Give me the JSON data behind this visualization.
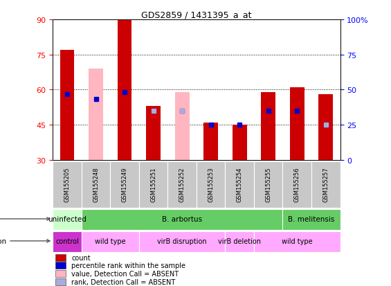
{
  "title": "GDS2859 / 1431395_a_at",
  "samples": [
    "GSM155205",
    "GSM155248",
    "GSM155249",
    "GSM155251",
    "GSM155252",
    "GSM155253",
    "GSM155254",
    "GSM155255",
    "GSM155256",
    "GSM155257"
  ],
  "ylim": [
    30,
    90
  ],
  "yticks": [
    30,
    45,
    60,
    75,
    90
  ],
  "y2lim": [
    0,
    100
  ],
  "y2ticks": [
    0,
    25,
    50,
    75,
    100
  ],
  "bar_bottom": 30,
  "red_bars": [
    77,
    null,
    90,
    53,
    null,
    46,
    45,
    59,
    61,
    58
  ],
  "pink_bars": [
    null,
    69,
    null,
    null,
    59,
    null,
    null,
    null,
    null,
    null
  ],
  "blue_markers": [
    58,
    56,
    59,
    51,
    51,
    45,
    45,
    51,
    51,
    45
  ],
  "light_blue_markers": [
    null,
    null,
    null,
    51,
    51,
    null,
    null,
    null,
    null,
    45
  ],
  "infection_groups": [
    {
      "label": "uninfected",
      "start": 0,
      "end": 1,
      "color": "#CCFFCC"
    },
    {
      "label": "B. arbortus",
      "start": 1,
      "end": 8,
      "color": "#66CC66"
    },
    {
      "label": "B. melitensis",
      "start": 8,
      "end": 10,
      "color": "#66CC66"
    }
  ],
  "genotype_groups": [
    {
      "label": "control",
      "start": 0,
      "end": 1,
      "color": "#CC33CC"
    },
    {
      "label": "wild type",
      "start": 1,
      "end": 3,
      "color": "#FFAAFF"
    },
    {
      "label": "virB disruption",
      "start": 3,
      "end": 6,
      "color": "#FFAAFF"
    },
    {
      "label": "virB deletion",
      "start": 6,
      "end": 7,
      "color": "#FFAAFF"
    },
    {
      "label": "wild type",
      "start": 7,
      "end": 10,
      "color": "#FFAAFF"
    }
  ],
  "legend_items": [
    {
      "label": "count",
      "color": "#CC0000"
    },
    {
      "label": "percentile rank within the sample",
      "color": "#0000CC"
    },
    {
      "label": "value, Detection Call = ABSENT",
      "color": "#FFB6C1"
    },
    {
      "label": "rank, Detection Call = ABSENT",
      "color": "#AAAADD"
    }
  ],
  "bar_width": 0.5,
  "marker_size": 4
}
